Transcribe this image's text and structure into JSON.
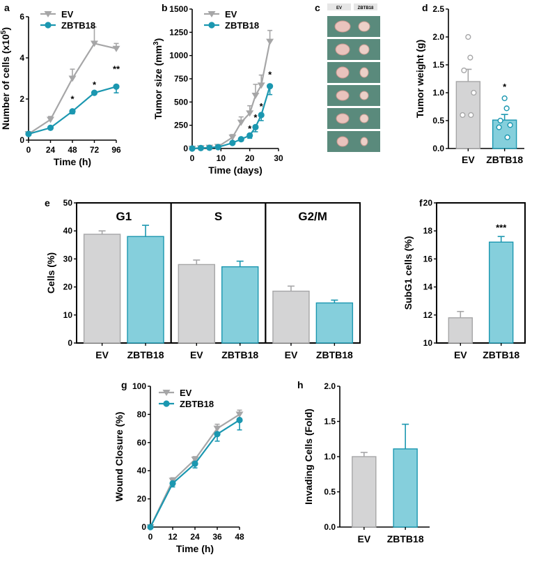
{
  "colors": {
    "ev": "#a6a6a7",
    "ev_fill": "#d4d4d5",
    "zbtb": "#1b97b0",
    "zbtb_fill": "#85cfdc",
    "axis": "#000000"
  },
  "chart_data": [
    {
      "id": "a",
      "letter": "a",
      "type": "line",
      "xlabel": "Time (h)",
      "ylabel": "Number of cells (x10",
      "ylabel_sup": "5",
      "ylabel_end": ")",
      "xlim": [
        0,
        96
      ],
      "ylim": [
        0,
        6
      ],
      "xticks": [
        "0",
        "24",
        "48",
        "72",
        "96"
      ],
      "yticks": [
        "0",
        "2",
        "4",
        "6"
      ],
      "series": [
        {
          "name": "EV",
          "x": [
            0,
            24,
            48,
            72,
            96
          ],
          "y": [
            0.3,
            1.0,
            3.0,
            4.7,
            4.45
          ],
          "err": [
            0.05,
            0.15,
            0.45,
            0.8,
            0.25
          ]
        },
        {
          "name": "ZBTB18",
          "x": [
            0,
            24,
            48,
            72,
            96
          ],
          "y": [
            0.3,
            0.6,
            1.4,
            2.3,
            2.6
          ],
          "err": [
            0.05,
            0.08,
            0.12,
            0.05,
            0.3
          ]
        }
      ],
      "annotations": [
        {
          "x": 48,
          "y": 1.85,
          "text": "*"
        },
        {
          "x": 72,
          "y": 2.55,
          "text": "*"
        },
        {
          "x": 96,
          "y": 3.3,
          "text": "**"
        }
      ]
    },
    {
      "id": "b",
      "letter": "b",
      "type": "line",
      "xlabel": "Time (days)",
      "ylabel": "Tumor size (mm",
      "ylabel_sup": "3",
      "ylabel_end": ")",
      "xlim": [
        0,
        30
      ],
      "ylim": [
        0,
        1500
      ],
      "xticks": [
        "0",
        "10",
        "20",
        "30"
      ],
      "yticks": [
        "0",
        "250",
        "500",
        "750",
        "1000",
        "1250",
        "1500"
      ],
      "series": [
        {
          "name": "EV",
          "x": [
            0,
            3,
            6,
            9,
            14,
            17,
            20,
            22,
            24,
            27
          ],
          "y": [
            0,
            5,
            10,
            20,
            120,
            280,
            380,
            570,
            680,
            1150
          ],
          "err": [
            5,
            8,
            10,
            15,
            30,
            60,
            80,
            120,
            110,
            120
          ]
        },
        {
          "name": "ZBTB18",
          "x": [
            0,
            3,
            6,
            9,
            14,
            17,
            20,
            22,
            24,
            27
          ],
          "y": [
            0,
            5,
            8,
            15,
            60,
            100,
            140,
            230,
            360,
            670
          ],
          "err": [
            5,
            5,
            8,
            10,
            15,
            20,
            30,
            50,
            60,
            90
          ]
        }
      ],
      "annotations": [
        {
          "x": 20,
          "y": 180,
          "text": "*"
        },
        {
          "x": 22,
          "y": 300,
          "text": "*"
        },
        {
          "x": 24,
          "y": 420,
          "text": "*"
        },
        {
          "x": 27,
          "y": 760,
          "text": "*"
        }
      ]
    },
    {
      "id": "c",
      "letter": "c",
      "type": "image",
      "labels": [
        "EV",
        "ZBTB18"
      ],
      "rows": 6
    },
    {
      "id": "d",
      "letter": "d",
      "type": "bar",
      "xlabel": "",
      "ylabel": "Tumor weight (g)",
      "ylim": [
        0,
        2.5
      ],
      "yticks": [
        "0.0",
        "0.5",
        "1.0",
        "1.5",
        "2.0",
        "2.5"
      ],
      "categories": [
        "EV",
        "ZBTB18"
      ],
      "values": [
        1.2,
        0.51
      ],
      "err": [
        0.22,
        0.1
      ],
      "points": [
        [
          2.0,
          1.63,
          1.4,
          1.0,
          0.6,
          0.6
        ],
        [
          0.9,
          0.72,
          0.5,
          0.42,
          0.38,
          0.2
        ]
      ],
      "annotations": [
        {
          "index": 1,
          "text": "*"
        }
      ]
    },
    {
      "id": "e",
      "letter": "e",
      "type": "bar",
      "ylabel": "Cells (%)",
      "ylim": [
        0,
        50
      ],
      "yticks": [
        "0",
        "10",
        "20",
        "30",
        "40",
        "50"
      ],
      "categories": [
        "EV",
        "ZBTB18"
      ],
      "groups": [
        {
          "title": "G1",
          "values": [
            38.8,
            38.0
          ],
          "err": [
            1.2,
            4.0
          ]
        },
        {
          "title": "S",
          "values": [
            28.0,
            27.2
          ],
          "err": [
            1.6,
            2.0
          ]
        },
        {
          "title": "G2/M",
          "values": [
            18.5,
            14.3
          ],
          "err": [
            1.8,
            1.0
          ]
        }
      ]
    },
    {
      "id": "f",
      "letter": "f",
      "type": "bar",
      "ylabel": "SubG1 cells (%)",
      "ylim": [
        10,
        20
      ],
      "yticks": [
        "10",
        "12",
        "14",
        "16",
        "18",
        "20"
      ],
      "categories": [
        "EV",
        "ZBTB18"
      ],
      "values": [
        11.8,
        17.2
      ],
      "err": [
        0.45,
        0.4
      ],
      "annotations": [
        {
          "index": 1,
          "text": "***"
        }
      ]
    },
    {
      "id": "g",
      "letter": "g",
      "type": "line",
      "xlabel": "Time (h)",
      "ylabel": "Wound Closure (%)",
      "xlim": [
        0,
        48
      ],
      "ylim": [
        0,
        100
      ],
      "xticks": [
        "0",
        "12",
        "24",
        "36",
        "48"
      ],
      "yticks": [
        "0",
        "20",
        "40",
        "60",
        "80",
        "100"
      ],
      "series": [
        {
          "name": "EV",
          "x": [
            0,
            12,
            24,
            36,
            48
          ],
          "y": [
            0,
            33,
            48,
            70,
            80
          ],
          "err": [
            0,
            2,
            2,
            3,
            3
          ]
        },
        {
          "name": "ZBTB18",
          "x": [
            0,
            12,
            24,
            36,
            48
          ],
          "y": [
            0,
            31,
            45,
            66,
            76
          ],
          "err": [
            0,
            2.5,
            3,
            5,
            7
          ]
        }
      ]
    },
    {
      "id": "h",
      "letter": "h",
      "type": "bar",
      "ylabel": "Invading Cells (Fold)",
      "ylim": [
        0,
        2.0
      ],
      "yticks": [
        "0.0",
        "0.5",
        "1.0",
        "1.5",
        "2.0"
      ],
      "categories": [
        "EV",
        "ZBTB18"
      ],
      "values": [
        1.0,
        1.11
      ],
      "err": [
        0.06,
        0.35
      ]
    }
  ]
}
